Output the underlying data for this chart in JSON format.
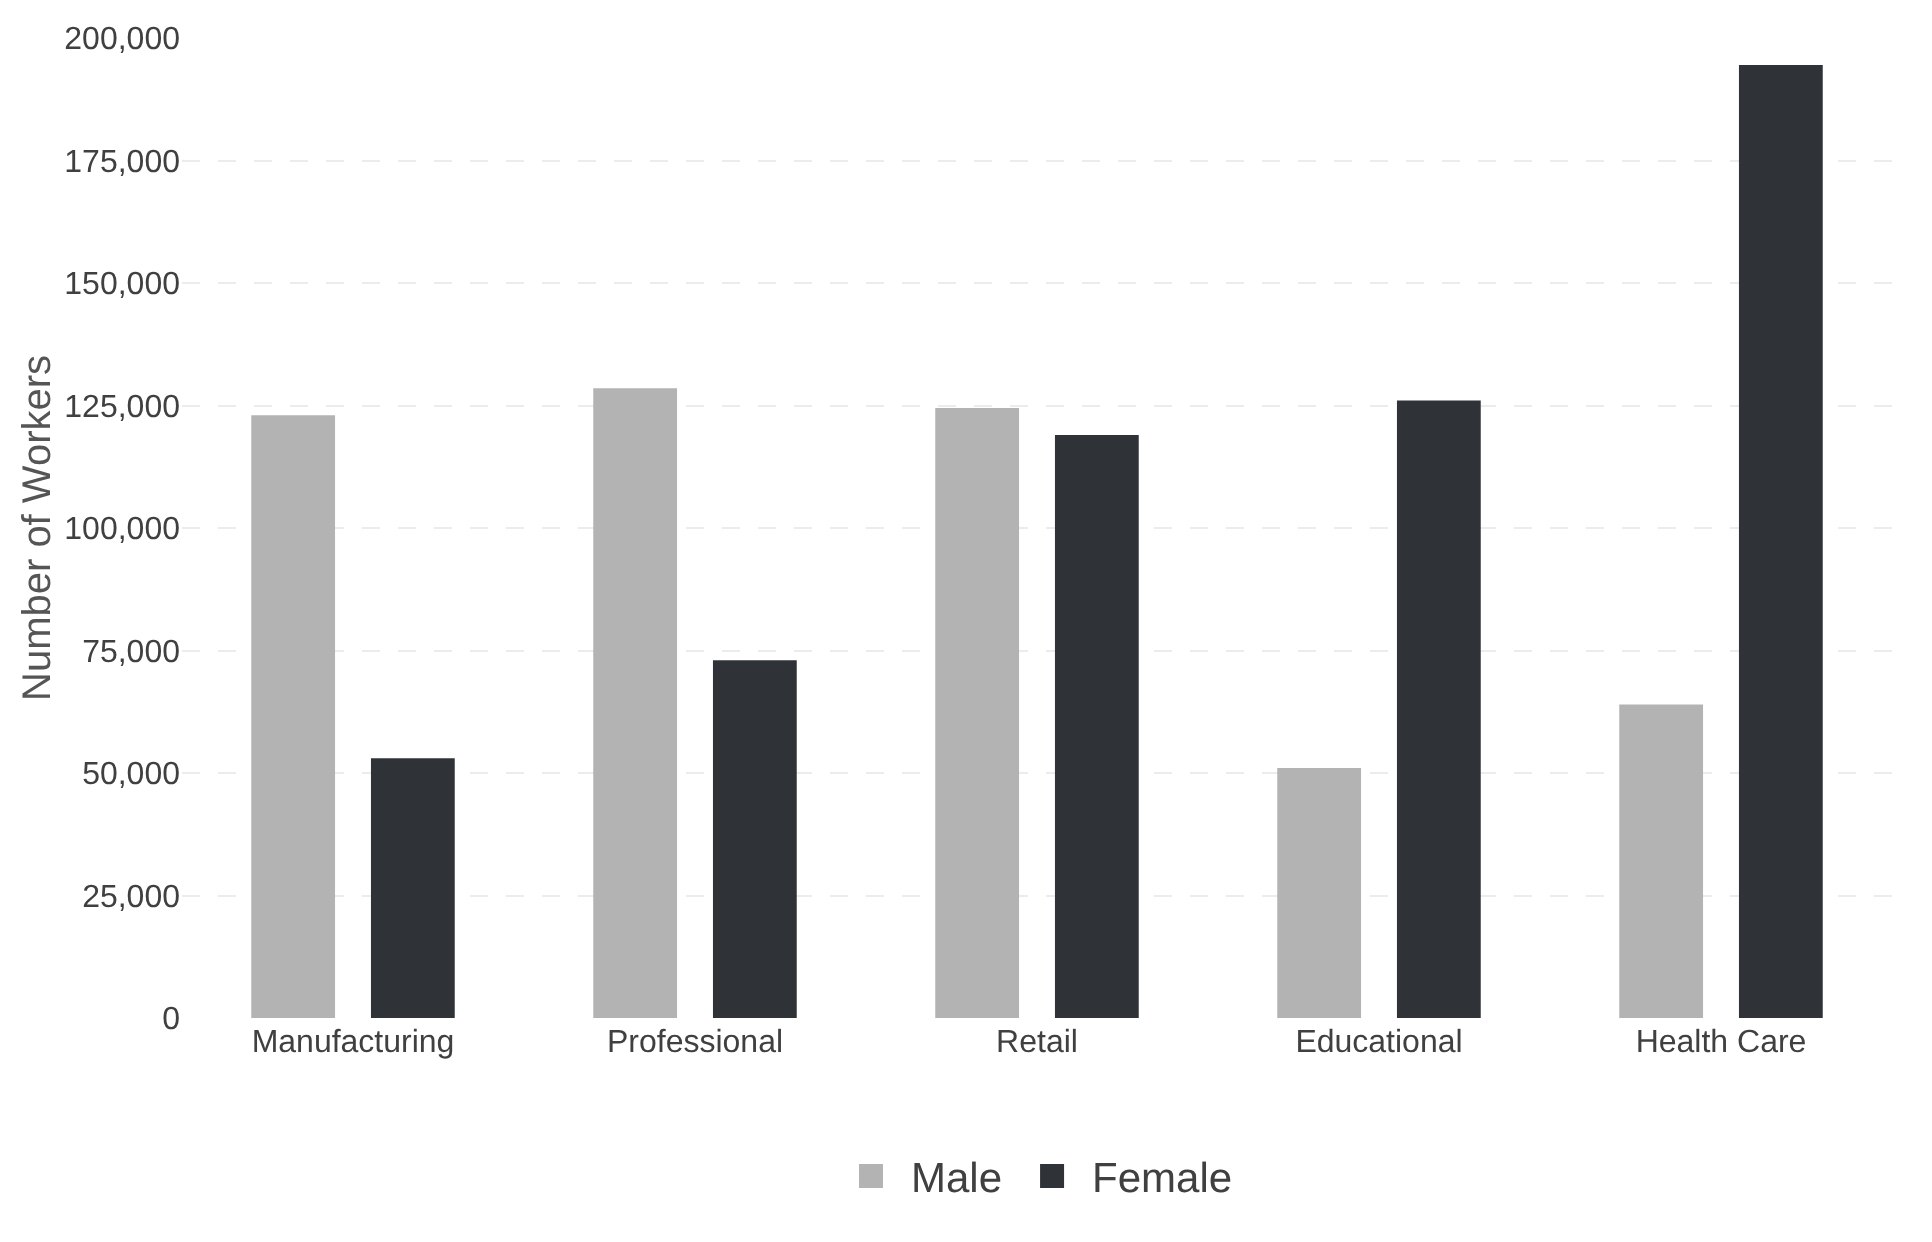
{
  "chart_data": {
    "type": "bar",
    "ylabel": "Number of Workers",
    "categories": [
      "Manufacturing",
      "Professional",
      "Retail",
      "Educational",
      "Health Care"
    ],
    "series": [
      {
        "name": "Male",
        "color": "#b3b3b3",
        "values": [
          123000,
          128500,
          124500,
          51000,
          64000
        ]
      },
      {
        "name": "Female",
        "color": "#2f3338",
        "values": [
          53000,
          73000,
          119000,
          126000,
          194500
        ]
      }
    ],
    "ylim": [
      0,
      200000
    ],
    "yticks": [
      {
        "value": 0,
        "label": "0"
      },
      {
        "value": 25000,
        "label": "25,000"
      },
      {
        "value": 50000,
        "label": "50,000"
      },
      {
        "value": 75000,
        "label": "75,000"
      },
      {
        "value": 100000,
        "label": "100,000"
      },
      {
        "value": 125000,
        "label": "125,000"
      },
      {
        "value": 150000,
        "label": "150,000"
      },
      {
        "value": 175000,
        "label": "175,000"
      },
      {
        "value": 200000,
        "label": "200,000"
      }
    ],
    "grid": "y",
    "legend": "bottom"
  }
}
